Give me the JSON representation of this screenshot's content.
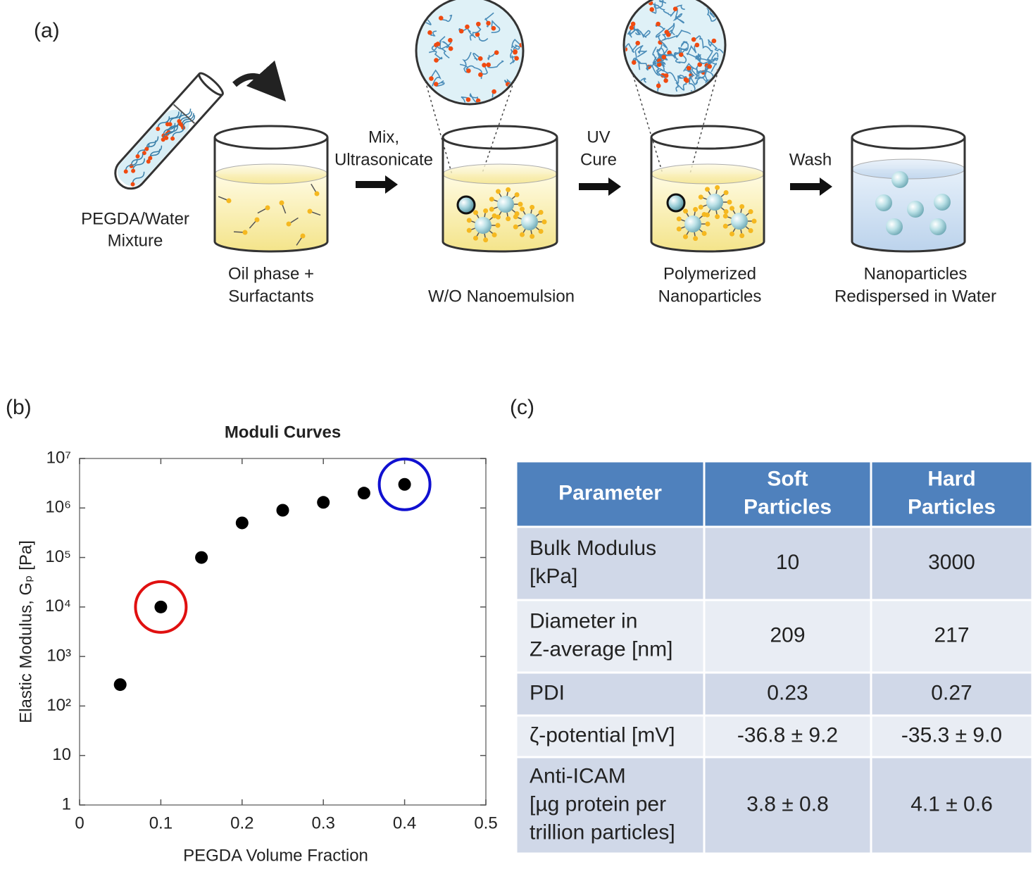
{
  "panel_a": {
    "label": "(a)",
    "tube_label": [
      "PEGDA/Water",
      "Mixture"
    ],
    "steps": [
      {
        "label": [
          "Oil phase +",
          "Surfactants"
        ]
      },
      {
        "arrow": [
          "Mix,",
          "Ultrasonicate"
        ],
        "label": [
          "W/O Nanoemulsion"
        ]
      },
      {
        "arrow": [
          "UV",
          "Cure"
        ],
        "label": [
          "Polymerized",
          "Nanoparticles"
        ]
      },
      {
        "arrow": [
          "Wash"
        ],
        "label": [
          "Nanoparticles",
          "Redispersed in Water"
        ]
      }
    ]
  },
  "chart_data": {
    "type": "scatter",
    "panel_label": "(b)",
    "title": "Moduli Curves",
    "x_label": "PEGDA Volume Fraction",
    "y_label": "Elastic Modulus, Gₚ [Pa]",
    "x": [
      0.05,
      0.1,
      0.15,
      0.2,
      0.25,
      0.3,
      0.35,
      0.4
    ],
    "values": [
      270,
      10000,
      100000,
      500000,
      900000,
      1300000,
      2000000,
      3000000
    ],
    "color": "#000000",
    "highlights": [
      {
        "point": 1,
        "color": "#e01010"
      },
      {
        "point": 7,
        "color": "#1010d0"
      }
    ],
    "xlim": [
      0,
      0.5
    ],
    "xticks": [
      0,
      0.1,
      0.2,
      0.3,
      0.4,
      0.5
    ],
    "ylim": [
      1,
      10000000
    ],
    "log_y": true,
    "yticks": [
      1,
      10,
      {
        "value": 100,
        "label": "10²"
      },
      {
        "value": 1000,
        "label": "10³"
      },
      {
        "value": 10000,
        "label": "10⁴"
      },
      {
        "value": 100000,
        "label": "10⁵"
      },
      {
        "value": 1000000,
        "label": "10⁶"
      },
      {
        "value": 10000000,
        "label": "10⁷"
      }
    ]
  },
  "table": {
    "panel_label": "(c)",
    "header": [
      [
        "Parameter"
      ],
      [
        "Soft",
        "Particles"
      ],
      [
        "Hard",
        "Particles"
      ]
    ],
    "rows": [
      [
        [
          "Bulk Modulus",
          "[kPa]"
        ],
        [
          "10"
        ],
        [
          "3000"
        ]
      ],
      [
        [
          "Diameter in",
          "Z-average [nm]"
        ],
        [
          "209"
        ],
        [
          "217"
        ]
      ],
      [
        [
          "PDI"
        ],
        [
          "0.23"
        ],
        [
          "0.27"
        ]
      ],
      [
        [
          "ζ-potential [mV]"
        ],
        [
          "-36.8 ± 9.2"
        ],
        [
          "-35.3 ± 9.0"
        ]
      ],
      [
        [
          "Anti-ICAM",
          "[µg protein per",
          "trillion particles]"
        ],
        [
          "3.8 ± 0.8"
        ],
        [
          "4.1 ± 0.6"
        ]
      ]
    ]
  }
}
